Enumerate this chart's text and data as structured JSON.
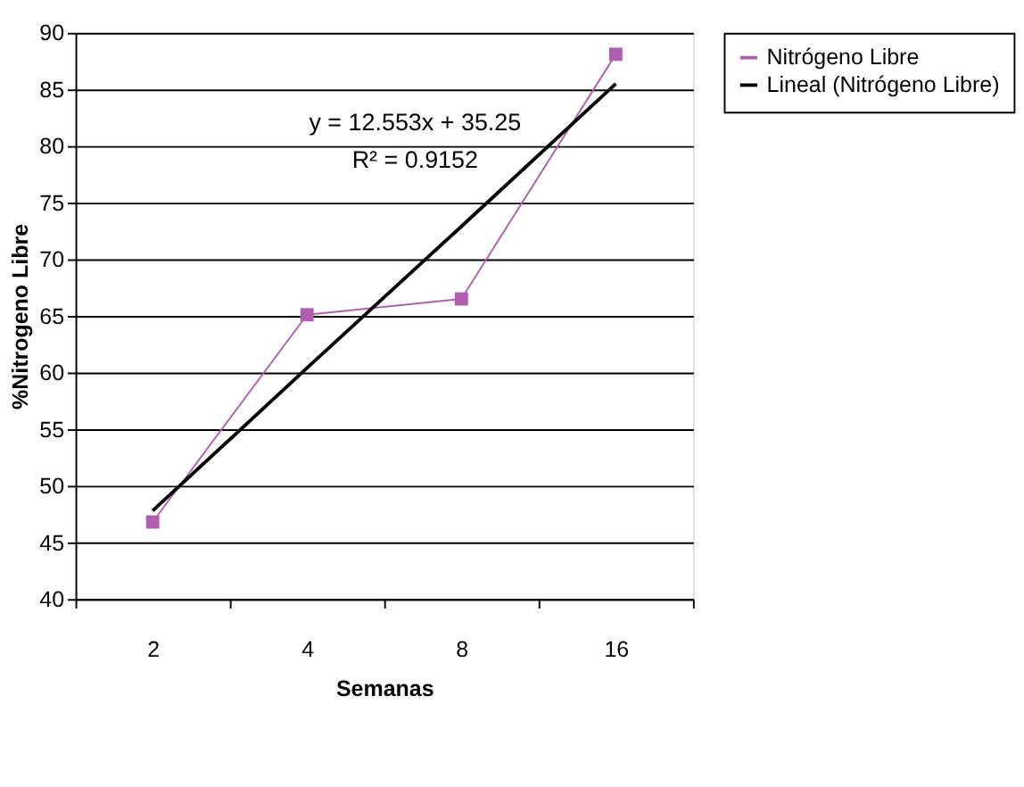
{
  "chart_data": {
    "type": "line",
    "xlabel": "Semanas",
    "ylabel": "%Nitrogeno Libre",
    "categories": [
      "2",
      "4",
      "8",
      "16"
    ],
    "series": [
      {
        "name": "Nitrógeno Libre",
        "color": "#b05fb0",
        "values": [
          46.8,
          65.1,
          66.5,
          88.1
        ],
        "marker": "square"
      },
      {
        "name": "Lineal (Nitrógeno Libre)",
        "color": "#000000",
        "values": [
          47.8,
          60.4,
          72.9,
          85.5
        ],
        "marker": "none"
      }
    ],
    "ylim": [
      40,
      90
    ],
    "yticks": [
      40,
      45,
      50,
      55,
      60,
      65,
      70,
      75,
      80,
      85,
      90
    ],
    "grid": "y",
    "legend": "top right",
    "annotations": [
      "y = 12.553x + 35.25",
      "R² = 0.9152"
    ]
  }
}
